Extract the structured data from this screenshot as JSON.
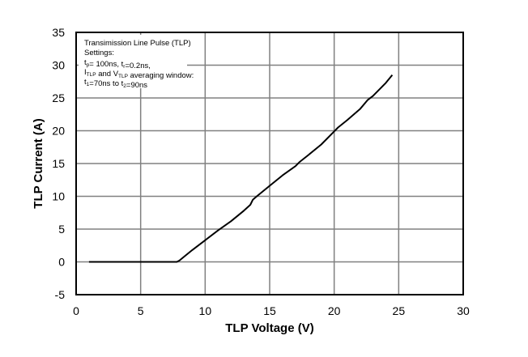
{
  "chart_data": {
    "type": "line",
    "xlabel": "TLP Voltage (V)",
    "ylabel": "TLP Current (A)",
    "xlim": [
      0,
      30
    ],
    "ylim": [
      -5,
      35
    ],
    "xticks": [
      0,
      5,
      10,
      15,
      20,
      25,
      30
    ],
    "yticks": [
      -5,
      0,
      5,
      10,
      15,
      20,
      25,
      30,
      35
    ],
    "grid": true,
    "series": [
      {
        "color": "#000000",
        "x": [
          1,
          2,
          3,
          4,
          5,
          6,
          7,
          7.8,
          8,
          8.5,
          9,
          10,
          11,
          12,
          13,
          13.5,
          13.7,
          14,
          15,
          16,
          17,
          17.3,
          18,
          19,
          20,
          20.3,
          21,
          22,
          22.6,
          23,
          24,
          24.5
        ],
        "y": [
          0,
          0,
          0,
          0,
          0,
          0,
          0,
          0,
          0.2,
          1.0,
          1.8,
          3.3,
          4.8,
          6.2,
          7.8,
          8.7,
          9.5,
          10.0,
          11.6,
          13.2,
          14.6,
          15.2,
          16.3,
          17.9,
          19.9,
          20.5,
          21.6,
          23.3,
          24.7,
          25.3,
          27.3,
          28.5
        ]
      }
    ],
    "annotation": {
      "line1": "Transimission Line Pulse (TLP)",
      "line2": "Settings:",
      "line3": [
        {
          "t": "t"
        },
        {
          "t": "p",
          "sub": true
        },
        {
          "t": "= 100ns, t"
        },
        {
          "t": "r",
          "sub": true
        },
        {
          "t": "=0.2ns,"
        }
      ],
      "line4": [
        {
          "t": "I"
        },
        {
          "t": "TLP",
          "sub": true
        },
        {
          "t": " and V"
        },
        {
          "t": "TLP",
          "sub": true
        },
        {
          "t": " averaging window:"
        }
      ],
      "line5": [
        {
          "t": "t"
        },
        {
          "t": "1",
          "sub": true
        },
        {
          "t": "=70ns to t"
        },
        {
          "t": "2",
          "sub": true
        },
        {
          "t": "=90ns"
        }
      ]
    }
  }
}
